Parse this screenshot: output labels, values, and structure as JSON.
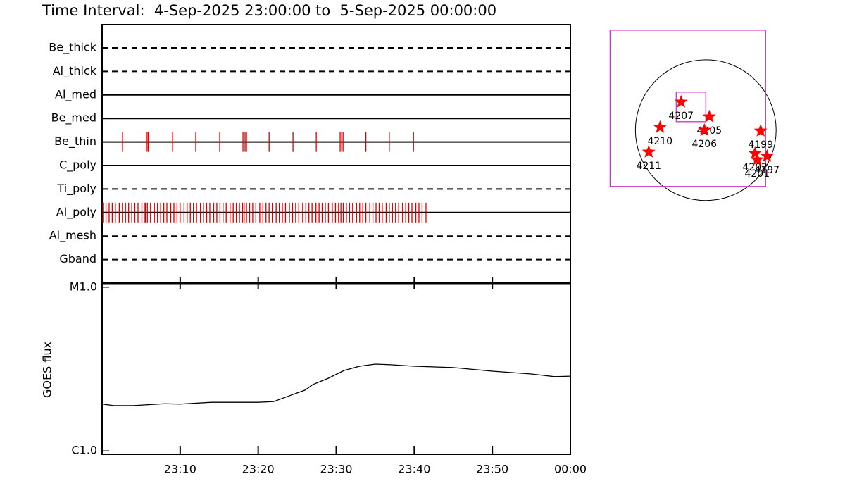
{
  "title": "Time Interval:  4-Sep-2025 23:00:00 to  5-Sep-2025 00:00:00",
  "chart_data": [
    {
      "type": "timeline",
      "xlim": [
        0,
        60
      ],
      "color": "#d40000",
      "series": [
        {
          "name": "Be_thick",
          "style": "dashed",
          "values": []
        },
        {
          "name": "Al_thick",
          "style": "dashed",
          "values": []
        },
        {
          "name": "Al_med",
          "style": "solid",
          "values": []
        },
        {
          "name": "Be_med",
          "style": "solid",
          "values": []
        },
        {
          "name": "Be_thin",
          "style": "solid",
          "values": [
            2.62,
            5.69,
            5.87,
            5.96,
            9.03,
            12.0,
            15.07,
            18.05,
            18.32,
            18.5,
            21.4,
            24.46,
            27.44,
            30.5,
            30.7,
            30.87,
            33.8,
            36.8,
            39.9
          ]
        },
        {
          "name": "C_poly",
          "style": "solid",
          "values": []
        },
        {
          "name": "Ti_poly",
          "style": "dashed",
          "values": []
        },
        {
          "name": "Al_poly",
          "style": "solid",
          "values": [
            0.1,
            0.5,
            0.9,
            1.3,
            1.7,
            2.2,
            2.6,
            3.0,
            3.4,
            3.8,
            4.2,
            4.6,
            5.1,
            5.5,
            5.6,
            5.8,
            6.2,
            6.7,
            7.1,
            7.5,
            7.9,
            8.3,
            8.8,
            9.2,
            9.6,
            10.0,
            10.5,
            10.9,
            11.3,
            11.7,
            12.1,
            12.6,
            13.0,
            13.4,
            13.8,
            14.3,
            14.7,
            15.1,
            15.5,
            15.9,
            16.4,
            16.8,
            17.2,
            17.6,
            18.0,
            18.2,
            18.5,
            18.9,
            19.3,
            19.7,
            20.2,
            20.6,
            21.0,
            21.4,
            21.8,
            22.3,
            22.7,
            23.1,
            23.5,
            24.0,
            24.4,
            24.8,
            25.2,
            25.7,
            26.1,
            26.5,
            26.9,
            27.4,
            27.8,
            28.2,
            28.6,
            29.0,
            29.5,
            29.9,
            30.3,
            30.6,
            30.9,
            31.3,
            31.7,
            32.1,
            32.6,
            33.0,
            33.4,
            33.8,
            34.3,
            34.7,
            35.1,
            35.5,
            35.9,
            36.4,
            36.8,
            37.2,
            37.6,
            38.0,
            38.5,
            38.9,
            39.3,
            39.7,
            40.2,
            40.6,
            41.0,
            41.5
          ]
        },
        {
          "name": "Al_mesh",
          "style": "dashed",
          "values": []
        },
        {
          "name": "Gband",
          "style": "dashed",
          "values": []
        }
      ]
    },
    {
      "type": "line",
      "ylabel": "GOES flux",
      "ylog": true,
      "color": "#000000",
      "xlim": [
        0,
        60
      ],
      "xticks": [
        {
          "value": 10,
          "label": "23:10"
        },
        {
          "value": 20,
          "label": "23:20"
        },
        {
          "value": 30,
          "label": "23:30"
        },
        {
          "value": 40,
          "label": "23:40"
        },
        {
          "value": 50,
          "label": "23:50"
        },
        {
          "value": 60,
          "label": "00:00"
        }
      ],
      "ylim": [
        1e-06,
        1e-05
      ],
      "yticks": [
        {
          "value": 1e-06,
          "label": "C1.0"
        },
        {
          "value": 1e-05,
          "label": "M1.0"
        }
      ],
      "x": [
        0,
        1.5,
        4,
        8,
        10,
        14,
        20,
        22,
        24,
        26,
        27,
        29,
        31,
        33,
        35,
        37,
        40,
        45,
        50,
        55,
        58,
        60
      ],
      "values": [
        1.93e-06,
        1.89e-06,
        1.89e-06,
        1.94e-06,
        1.93e-06,
        1.98e-06,
        1.98e-06,
        2e-06,
        2.17e-06,
        2.35e-06,
        2.54e-06,
        2.78e-06,
        3.1e-06,
        3.29e-06,
        3.39e-06,
        3.36e-06,
        3.29e-06,
        3.23e-06,
        3.07e-06,
        2.95e-06,
        2.84e-06,
        2.86e-06
      ]
    },
    {
      "type": "map",
      "xlim": [
        -1400,
        1100
      ],
      "ylim": [
        -1000,
        1500
      ],
      "solar_radius": 950,
      "box_color": "#cc33cc",
      "star_color": "#ff0000",
      "boxes": [
        {
          "x": [
            -1292,
            808
          ],
          "y": [
            -760,
            1349
          ]
        },
        {
          "x": [
            -399,
            0
          ],
          "y": [
            114,
            513
          ]
        }
      ],
      "regions": [
        {
          "label": "4207",
          "x": -333,
          "y": 380
        },
        {
          "label": "4205",
          "x": 48,
          "y": 181
        },
        {
          "label": "4206",
          "x": -19,
          "y": 0
        },
        {
          "label": "4210",
          "x": -618,
          "y": 38
        },
        {
          "label": "4211",
          "x": -770,
          "y": -295
        },
        {
          "label": "4199",
          "x": 741,
          "y": -10
        },
        {
          "label": "4202",
          "x": 665,
          "y": -314
        },
        {
          "label": "4201",
          "x": 694,
          "y": -399
        },
        {
          "label": "4197",
          "x": 827,
          "y": -352
        }
      ]
    }
  ]
}
